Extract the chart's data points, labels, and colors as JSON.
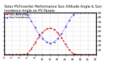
{
  "title": "Solar PV/Inverter Performance Sun Altitude Angle & Sun Incidence Angle on PV Panels",
  "legend1": "Sun Altitude  ---",
  "legend2": "Sun Incidence ...",
  "background_color": "#ffffff",
  "grid_color": "#bbbbbb",
  "line1_color": "#cc0000",
  "line2_color": "#0000cc",
  "x_values": [
    0,
    1,
    2,
    3,
    4,
    5,
    6,
    7,
    8,
    9,
    10,
    11,
    12,
    13,
    14,
    15,
    16,
    17,
    18,
    19,
    20,
    21,
    22,
    23,
    24
  ],
  "altitude_values": [
    0,
    0,
    0,
    0,
    0,
    0,
    2,
    12,
    25,
    38,
    48,
    55,
    57,
    54,
    46,
    36,
    22,
    10,
    2,
    0,
    0,
    0,
    0,
    0,
    0
  ],
  "incidence_values": [
    90,
    90,
    90,
    90,
    90,
    90,
    85,
    72,
    58,
    44,
    35,
    27,
    24,
    27,
    35,
    45,
    60,
    74,
    86,
    90,
    90,
    90,
    90,
    90,
    90
  ],
  "ylim": [
    0,
    90
  ],
  "yticks": [
    10,
    20,
    30,
    40,
    50,
    60,
    70,
    80,
    90
  ],
  "ytick_labels": [
    "10",
    "20",
    "30",
    "40",
    "50",
    "60",
    "70",
    "80",
    "90"
  ],
  "xticks": [
    0,
    2,
    4,
    6,
    8,
    10,
    12,
    14,
    16,
    18,
    20,
    22,
    24
  ],
  "title_fontsize": 3.5,
  "tick_fontsize": 3.0,
  "legend_fontsize": 3.0
}
